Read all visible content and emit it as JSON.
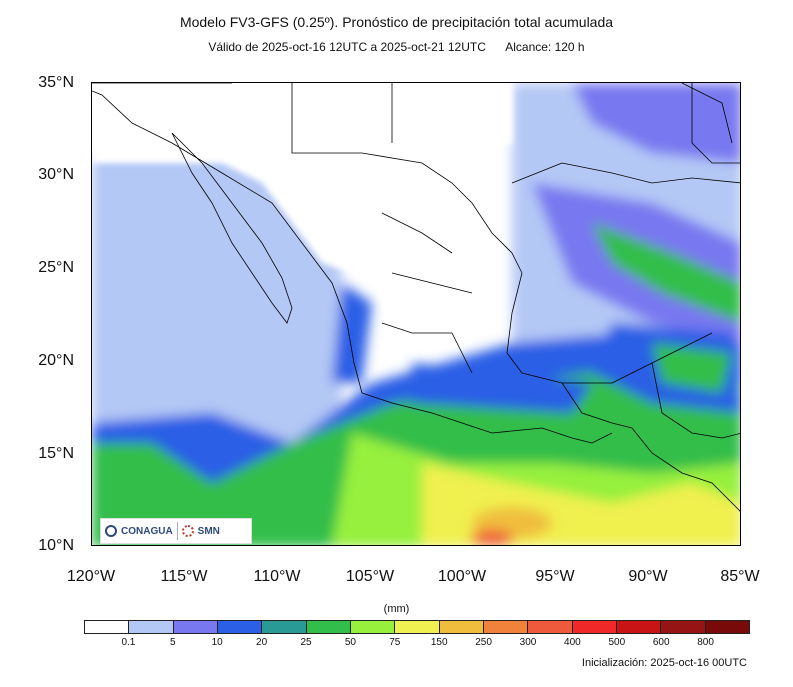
{
  "title": "Modelo FV3-GFS (0.25º). Pronóstico de precipitación total acumulada",
  "valid": "Válido de 2025-oct-16 12UTC a 2025-oct-21 12UTC",
  "range": "Alcance: 120 h",
  "lat_labels": [
    "35°N",
    "30°N",
    "25°N",
    "20°N",
    "15°N",
    "10°N"
  ],
  "lon_labels": [
    "120°W",
    "115°W",
    "110°W",
    "105°W",
    "100°W",
    "95°W",
    "90°W",
    "85°W"
  ],
  "unit": "(mm)",
  "colorbar": {
    "colors": [
      "#ffffff",
      "#b4c8f5",
      "#7878f0",
      "#2a5fe6",
      "#2a9a96",
      "#32be4a",
      "#96f03c",
      "#f0f050",
      "#f0be3c",
      "#f0823c",
      "#f05a3c",
      "#f02828",
      "#c81414",
      "#961414",
      "#780a0a"
    ],
    "labels": [
      "0.1",
      "5",
      "10",
      "20",
      "25",
      "50",
      "75",
      "150",
      "250",
      "300",
      "400",
      "500",
      "600",
      "800"
    ]
  },
  "logos": [
    "CONAGUA",
    "SMN"
  ],
  "init": "Inicialización: 2025-oct-16 00UTC"
}
